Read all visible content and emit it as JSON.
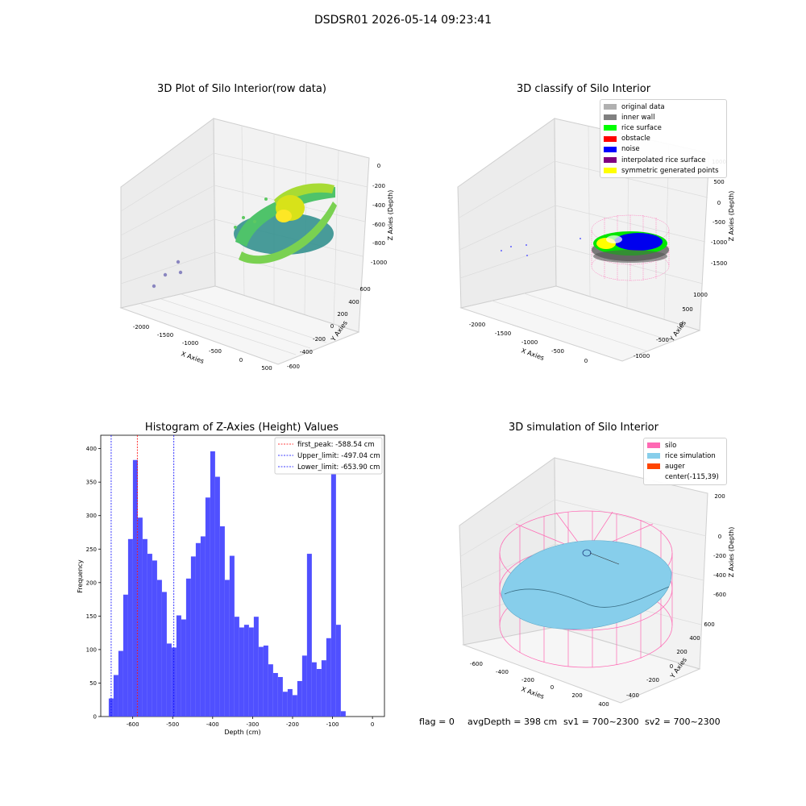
{
  "suptitle": "DSDSR01 2026-05-14 09:23:41",
  "plot1": {
    "title": "3D Plot of Silo Interior(row data)",
    "xlabel": "X Axies",
    "ylabel": "Y Axies",
    "zlabel": "Z Axies (Depth)",
    "xticks": [
      "-2000",
      "-1500",
      "-1000",
      "-500",
      "0",
      "500"
    ],
    "yticks": [
      "-600",
      "-400",
      "-200",
      "0",
      "200",
      "400",
      "600"
    ],
    "zticks": [
      "0",
      "-200",
      "-400",
      "-600",
      "-800",
      "-1000"
    ],
    "colormap": [
      "#440154",
      "#31688e",
      "#35b779",
      "#fde725"
    ]
  },
  "plot2": {
    "title": "3D classify of Silo Interior",
    "xlabel": "X Axies",
    "ylabel": "Y Axies",
    "zlabel": "Z Axies (Depth)",
    "xticks": [
      "-2000",
      "-1500",
      "-1000",
      "-500",
      "0"
    ],
    "yticks": [
      "-1000",
      "-500",
      "0",
      "500",
      "1000"
    ],
    "zticks": [
      "1000",
      "500",
      "0",
      "-500",
      "-1000",
      "-1500"
    ],
    "legend": [
      {
        "label": "original data",
        "color": "#b0b0b0"
      },
      {
        "label": "inner wall",
        "color": "#808080"
      },
      {
        "label": "rice surface",
        "color": "#00ff00"
      },
      {
        "label": "obstacle",
        "color": "#ff0000"
      },
      {
        "label": "noise",
        "color": "#0000ff"
      },
      {
        "label": "interpolated rice surface",
        "color": "#800080"
      },
      {
        "label": "symmetric generated points",
        "color": "#ffff00"
      }
    ]
  },
  "plot3": {
    "title": "Histogram of Z-Axies (Height) Values",
    "xlabel": "Depth (cm)",
    "ylabel": "Frequency",
    "bar_color": "#5050ff",
    "legend": [
      {
        "label": "first_peak: -588.54 cm",
        "color": "#ff0000"
      },
      {
        "label": "Upper_limit: -497.04 cm",
        "color": "#0000ff"
      },
      {
        "label": "Lower_limit: -653.90 cm",
        "color": "#0000ff"
      }
    ]
  },
  "plot4": {
    "title": "3D simulation of Silo Interior",
    "xlabel": "X Axies",
    "ylabel": "Y Axies",
    "zlabel": "Z Axies (Depth)",
    "xticks": [
      "-600",
      "-400",
      "-200",
      "0",
      "200",
      "400"
    ],
    "yticks": [
      "-400",
      "-200",
      "0",
      "200",
      "400",
      "600"
    ],
    "zticks": [
      "200",
      "0",
      "-200",
      "-400",
      "-600"
    ],
    "legend": [
      {
        "label": "silo",
        "color": "#ff69b4"
      },
      {
        "label": "rice simulation",
        "color": "#87ceeb"
      },
      {
        "label": "auger",
        "color": "#ff4500"
      },
      {
        "label": "center(-115,39)",
        "color": "#ffffff"
      }
    ]
  },
  "footer": {
    "flag": "flag = 0",
    "avg": "avgDepth = 398 cm",
    "sv1": "sv1 = 700~2300",
    "sv2": "sv2 = 700~2300"
  },
  "chart_data": {
    "type": "bar",
    "title": "Histogram of Z-Axies (Height) Values",
    "xlabel": "Depth (cm)",
    "ylabel": "Frequency",
    "xlim": [
      -680,
      30
    ],
    "ylim": [
      0,
      420
    ],
    "xticks": [
      -600,
      -500,
      -400,
      -300,
      -200,
      -100,
      0
    ],
    "yticks": [
      0,
      50,
      100,
      150,
      200,
      250,
      300,
      350,
      400
    ],
    "bin_start": -660,
    "bin_width": 12.1,
    "values": [
      27,
      62,
      98,
      182,
      265,
      383,
      297,
      265,
      243,
      233,
      204,
      186,
      109,
      103,
      151,
      145,
      206,
      239,
      259,
      269,
      327,
      396,
      358,
      284,
      204,
      240,
      149,
      133,
      137,
      133,
      149,
      104,
      106,
      78,
      65,
      59,
      37,
      41,
      32,
      53,
      91,
      243,
      81,
      71,
      84,
      117,
      398,
      137,
      8
    ],
    "vlines": [
      {
        "x": -588.54,
        "color": "#ff0000"
      },
      {
        "x": -497.04,
        "color": "#0000ff"
      },
      {
        "x": -653.9,
        "color": "#0000ff"
      }
    ]
  }
}
